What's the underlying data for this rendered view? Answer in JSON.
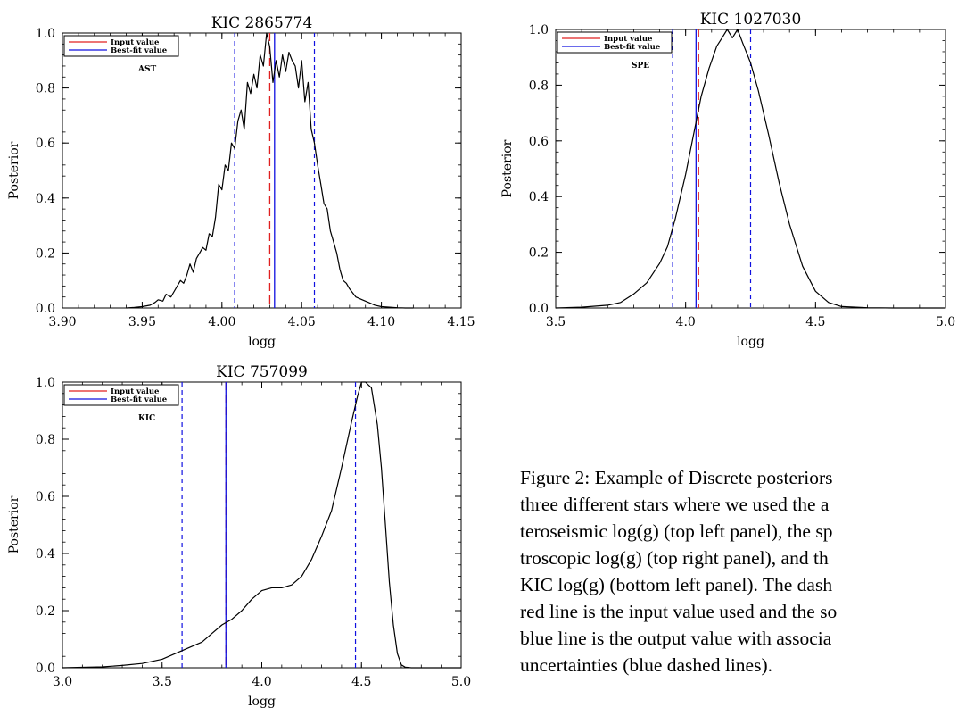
{
  "chart_data": [
    {
      "type": "line",
      "title": "KIC 2865774",
      "xlabel": "logg",
      "ylabel": "Posterior",
      "xlim": [
        3.9,
        4.15
      ],
      "ylim": [
        0.0,
        1.0
      ],
      "xticks": [
        "3.90",
        "3.95",
        "4.00",
        "4.05",
        "4.10",
        "4.15"
      ],
      "yticks": [
        "0.0",
        "0.2",
        "0.4",
        "0.6",
        "0.8",
        "1.0"
      ],
      "annotation": "AST",
      "legend": {
        "position": "top-left",
        "items": [
          {
            "label": "Input value",
            "color": "#e02020"
          },
          {
            "label": "Best-fit value",
            "color": "#1010e0"
          }
        ]
      },
      "input_value": 4.03,
      "best_fit_value": 4.033,
      "uncertainty_lines": [
        4.008,
        4.058
      ],
      "series": [
        {
          "name": "Posterior",
          "x": [
            3.94,
            3.945,
            3.95,
            3.955,
            3.958,
            3.96,
            3.963,
            3.965,
            3.968,
            3.97,
            3.972,
            3.974,
            3.976,
            3.978,
            3.98,
            3.982,
            3.984,
            3.986,
            3.988,
            3.99,
            3.992,
            3.994,
            3.996,
            3.998,
            4.0,
            4.002,
            4.004,
            4.006,
            4.008,
            4.01,
            4.012,
            4.014,
            4.016,
            4.018,
            4.02,
            4.022,
            4.024,
            4.026,
            4.028,
            4.03,
            4.032,
            4.034,
            4.036,
            4.038,
            4.04,
            4.042,
            4.044,
            4.046,
            4.048,
            4.05,
            4.052,
            4.054,
            4.056,
            4.058,
            4.06,
            4.062,
            4.064,
            4.066,
            4.068,
            4.07,
            4.072,
            4.074,
            4.076,
            4.078,
            4.08,
            4.084,
            4.088,
            4.092,
            4.096,
            4.1,
            4.105,
            4.11,
            4.115,
            4.12
          ],
          "y": [
            0.0,
            0.002,
            0.005,
            0.01,
            0.02,
            0.03,
            0.025,
            0.05,
            0.04,
            0.06,
            0.08,
            0.1,
            0.09,
            0.12,
            0.16,
            0.13,
            0.18,
            0.2,
            0.22,
            0.21,
            0.27,
            0.26,
            0.33,
            0.45,
            0.43,
            0.52,
            0.5,
            0.6,
            0.58,
            0.68,
            0.72,
            0.65,
            0.82,
            0.78,
            0.85,
            0.8,
            0.92,
            0.88,
            1.0,
            0.95,
            0.82,
            0.9,
            0.84,
            0.92,
            0.86,
            0.93,
            0.9,
            0.88,
            0.8,
            0.9,
            0.75,
            0.82,
            0.65,
            0.6,
            0.52,
            0.45,
            0.38,
            0.36,
            0.28,
            0.24,
            0.2,
            0.14,
            0.1,
            0.09,
            0.07,
            0.04,
            0.03,
            0.02,
            0.01,
            0.005,
            0.003,
            0.001,
            0.0,
            0.0
          ]
        }
      ]
    },
    {
      "type": "line",
      "title": "KIC 1027030",
      "xlabel": "logg",
      "ylabel": "Posterior",
      "xlim": [
        3.5,
        5.0
      ],
      "ylim": [
        0.0,
        1.0
      ],
      "xticks": [
        "3.5",
        "4.0",
        "4.5",
        "5.0"
      ],
      "yticks": [
        "0.0",
        "0.2",
        "0.4",
        "0.6",
        "0.8",
        "1.0"
      ],
      "annotation": "SPE",
      "legend": {
        "position": "top-left",
        "items": [
          {
            "label": "Input value",
            "color": "#e02020"
          },
          {
            "label": "Best-fit value",
            "color": "#1010e0"
          }
        ]
      },
      "input_value": 4.05,
      "best_fit_value": 4.04,
      "uncertainty_lines": [
        3.95,
        4.25
      ],
      "series": [
        {
          "name": "Posterior",
          "x": [
            3.5,
            3.6,
            3.7,
            3.75,
            3.8,
            3.85,
            3.9,
            3.93,
            3.96,
            4.0,
            4.03,
            4.06,
            4.09,
            4.12,
            4.14,
            4.16,
            4.18,
            4.2,
            4.22,
            4.25,
            4.28,
            4.32,
            4.36,
            4.4,
            4.45,
            4.5,
            4.55,
            4.6,
            4.7,
            4.8,
            5.0
          ],
          "y": [
            0.0,
            0.003,
            0.01,
            0.02,
            0.05,
            0.09,
            0.16,
            0.22,
            0.32,
            0.48,
            0.62,
            0.76,
            0.86,
            0.94,
            0.97,
            1.0,
            0.97,
            1.0,
            0.95,
            0.88,
            0.78,
            0.62,
            0.45,
            0.3,
            0.15,
            0.06,
            0.02,
            0.005,
            0.001,
            0.0,
            0.0
          ]
        }
      ]
    },
    {
      "type": "line",
      "title": "KIC 757099",
      "xlabel": "logg",
      "ylabel": "Posterior",
      "xlim": [
        3.0,
        5.0
      ],
      "ylim": [
        0.0,
        1.0
      ],
      "xticks": [
        "3.0",
        "3.5",
        "4.0",
        "4.5",
        "5.0"
      ],
      "yticks": [
        "0.0",
        "0.2",
        "0.4",
        "0.6",
        "0.8",
        "1.0"
      ],
      "annotation": "KIC",
      "legend": {
        "position": "top-left",
        "items": [
          {
            "label": "Input value",
            "color": "#e02020"
          },
          {
            "label": "Best-fit value",
            "color": "#1010e0"
          }
        ]
      },
      "input_value": 3.82,
      "best_fit_value": 3.82,
      "uncertainty_lines": [
        3.6,
        4.47
      ],
      "series": [
        {
          "name": "Posterior",
          "x": [
            3.0,
            3.2,
            3.3,
            3.4,
            3.5,
            3.6,
            3.7,
            3.75,
            3.8,
            3.85,
            3.9,
            3.95,
            4.0,
            4.05,
            4.1,
            4.15,
            4.2,
            4.25,
            4.3,
            4.35,
            4.4,
            4.45,
            4.48,
            4.5,
            4.52,
            4.55,
            4.58,
            4.6,
            4.62,
            4.64,
            4.66,
            4.68,
            4.7,
            4.72,
            4.75,
            4.8,
            5.0
          ],
          "y": [
            0.0,
            0.003,
            0.008,
            0.015,
            0.03,
            0.06,
            0.09,
            0.12,
            0.15,
            0.17,
            0.2,
            0.24,
            0.27,
            0.28,
            0.28,
            0.29,
            0.32,
            0.38,
            0.46,
            0.55,
            0.7,
            0.86,
            0.95,
            1.0,
            1.0,
            0.98,
            0.85,
            0.7,
            0.5,
            0.3,
            0.15,
            0.05,
            0.01,
            0.002,
            0.0,
            0.0,
            0.0
          ]
        }
      ]
    }
  ],
  "caption": {
    "lines": [
      "Figure 2: Example of Discrete posteriors",
      "three different stars where we used the a",
      "teroseismic log(g) (top left panel), the sp",
      "troscopic log(g) (top right panel), and th",
      "KIC log(g) (bottom left panel).  The dash",
      "red line is the input value used and the so",
      "blue line is the output value with associa",
      "uncertainties (blue dashed lines)."
    ]
  }
}
